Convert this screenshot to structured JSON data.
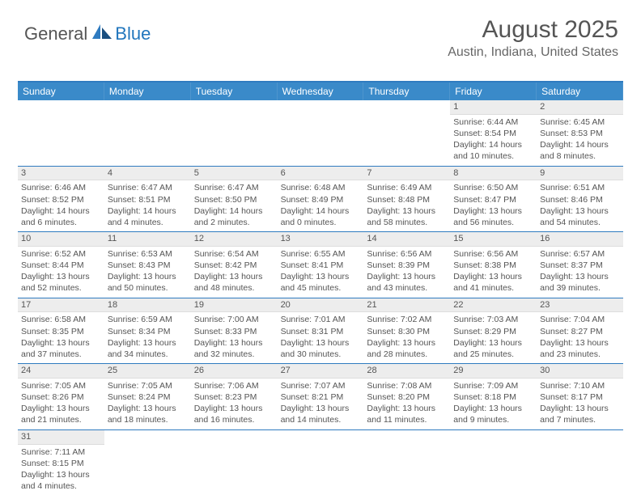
{
  "logo": {
    "part1": "General",
    "part2": "Blue"
  },
  "header": {
    "title": "August 2025",
    "location": "Austin, Indiana, United States"
  },
  "colors": {
    "header_bg": "#3a8ac9",
    "border": "#2f7bc0",
    "daynum_bg": "#ededed",
    "text": "#555555"
  },
  "day_names": [
    "Sunday",
    "Monday",
    "Tuesday",
    "Wednesday",
    "Thursday",
    "Friday",
    "Saturday"
  ],
  "weeks": [
    [
      null,
      null,
      null,
      null,
      null,
      {
        "n": "1",
        "sr": "Sunrise: 6:44 AM",
        "ss": "Sunset: 8:54 PM",
        "d1": "Daylight: 14 hours",
        "d2": "and 10 minutes."
      },
      {
        "n": "2",
        "sr": "Sunrise: 6:45 AM",
        "ss": "Sunset: 8:53 PM",
        "d1": "Daylight: 14 hours",
        "d2": "and 8 minutes."
      }
    ],
    [
      {
        "n": "3",
        "sr": "Sunrise: 6:46 AM",
        "ss": "Sunset: 8:52 PM",
        "d1": "Daylight: 14 hours",
        "d2": "and 6 minutes."
      },
      {
        "n": "4",
        "sr": "Sunrise: 6:47 AM",
        "ss": "Sunset: 8:51 PM",
        "d1": "Daylight: 14 hours",
        "d2": "and 4 minutes."
      },
      {
        "n": "5",
        "sr": "Sunrise: 6:47 AM",
        "ss": "Sunset: 8:50 PM",
        "d1": "Daylight: 14 hours",
        "d2": "and 2 minutes."
      },
      {
        "n": "6",
        "sr": "Sunrise: 6:48 AM",
        "ss": "Sunset: 8:49 PM",
        "d1": "Daylight: 14 hours",
        "d2": "and 0 minutes."
      },
      {
        "n": "7",
        "sr": "Sunrise: 6:49 AM",
        "ss": "Sunset: 8:48 PM",
        "d1": "Daylight: 13 hours",
        "d2": "and 58 minutes."
      },
      {
        "n": "8",
        "sr": "Sunrise: 6:50 AM",
        "ss": "Sunset: 8:47 PM",
        "d1": "Daylight: 13 hours",
        "d2": "and 56 minutes."
      },
      {
        "n": "9",
        "sr": "Sunrise: 6:51 AM",
        "ss": "Sunset: 8:46 PM",
        "d1": "Daylight: 13 hours",
        "d2": "and 54 minutes."
      }
    ],
    [
      {
        "n": "10",
        "sr": "Sunrise: 6:52 AM",
        "ss": "Sunset: 8:44 PM",
        "d1": "Daylight: 13 hours",
        "d2": "and 52 minutes."
      },
      {
        "n": "11",
        "sr": "Sunrise: 6:53 AM",
        "ss": "Sunset: 8:43 PM",
        "d1": "Daylight: 13 hours",
        "d2": "and 50 minutes."
      },
      {
        "n": "12",
        "sr": "Sunrise: 6:54 AM",
        "ss": "Sunset: 8:42 PM",
        "d1": "Daylight: 13 hours",
        "d2": "and 48 minutes."
      },
      {
        "n": "13",
        "sr": "Sunrise: 6:55 AM",
        "ss": "Sunset: 8:41 PM",
        "d1": "Daylight: 13 hours",
        "d2": "and 45 minutes."
      },
      {
        "n": "14",
        "sr": "Sunrise: 6:56 AM",
        "ss": "Sunset: 8:39 PM",
        "d1": "Daylight: 13 hours",
        "d2": "and 43 minutes."
      },
      {
        "n": "15",
        "sr": "Sunrise: 6:56 AM",
        "ss": "Sunset: 8:38 PM",
        "d1": "Daylight: 13 hours",
        "d2": "and 41 minutes."
      },
      {
        "n": "16",
        "sr": "Sunrise: 6:57 AM",
        "ss": "Sunset: 8:37 PM",
        "d1": "Daylight: 13 hours",
        "d2": "and 39 minutes."
      }
    ],
    [
      {
        "n": "17",
        "sr": "Sunrise: 6:58 AM",
        "ss": "Sunset: 8:35 PM",
        "d1": "Daylight: 13 hours",
        "d2": "and 37 minutes."
      },
      {
        "n": "18",
        "sr": "Sunrise: 6:59 AM",
        "ss": "Sunset: 8:34 PM",
        "d1": "Daylight: 13 hours",
        "d2": "and 34 minutes."
      },
      {
        "n": "19",
        "sr": "Sunrise: 7:00 AM",
        "ss": "Sunset: 8:33 PM",
        "d1": "Daylight: 13 hours",
        "d2": "and 32 minutes."
      },
      {
        "n": "20",
        "sr": "Sunrise: 7:01 AM",
        "ss": "Sunset: 8:31 PM",
        "d1": "Daylight: 13 hours",
        "d2": "and 30 minutes."
      },
      {
        "n": "21",
        "sr": "Sunrise: 7:02 AM",
        "ss": "Sunset: 8:30 PM",
        "d1": "Daylight: 13 hours",
        "d2": "and 28 minutes."
      },
      {
        "n": "22",
        "sr": "Sunrise: 7:03 AM",
        "ss": "Sunset: 8:29 PM",
        "d1": "Daylight: 13 hours",
        "d2": "and 25 minutes."
      },
      {
        "n": "23",
        "sr": "Sunrise: 7:04 AM",
        "ss": "Sunset: 8:27 PM",
        "d1": "Daylight: 13 hours",
        "d2": "and 23 minutes."
      }
    ],
    [
      {
        "n": "24",
        "sr": "Sunrise: 7:05 AM",
        "ss": "Sunset: 8:26 PM",
        "d1": "Daylight: 13 hours",
        "d2": "and 21 minutes."
      },
      {
        "n": "25",
        "sr": "Sunrise: 7:05 AM",
        "ss": "Sunset: 8:24 PM",
        "d1": "Daylight: 13 hours",
        "d2": "and 18 minutes."
      },
      {
        "n": "26",
        "sr": "Sunrise: 7:06 AM",
        "ss": "Sunset: 8:23 PM",
        "d1": "Daylight: 13 hours",
        "d2": "and 16 minutes."
      },
      {
        "n": "27",
        "sr": "Sunrise: 7:07 AM",
        "ss": "Sunset: 8:21 PM",
        "d1": "Daylight: 13 hours",
        "d2": "and 14 minutes."
      },
      {
        "n": "28",
        "sr": "Sunrise: 7:08 AM",
        "ss": "Sunset: 8:20 PM",
        "d1": "Daylight: 13 hours",
        "d2": "and 11 minutes."
      },
      {
        "n": "29",
        "sr": "Sunrise: 7:09 AM",
        "ss": "Sunset: 8:18 PM",
        "d1": "Daylight: 13 hours",
        "d2": "and 9 minutes."
      },
      {
        "n": "30",
        "sr": "Sunrise: 7:10 AM",
        "ss": "Sunset: 8:17 PM",
        "d1": "Daylight: 13 hours",
        "d2": "and 7 minutes."
      }
    ],
    [
      {
        "n": "31",
        "sr": "Sunrise: 7:11 AM",
        "ss": "Sunset: 8:15 PM",
        "d1": "Daylight: 13 hours",
        "d2": "and 4 minutes."
      },
      null,
      null,
      null,
      null,
      null,
      null
    ]
  ]
}
